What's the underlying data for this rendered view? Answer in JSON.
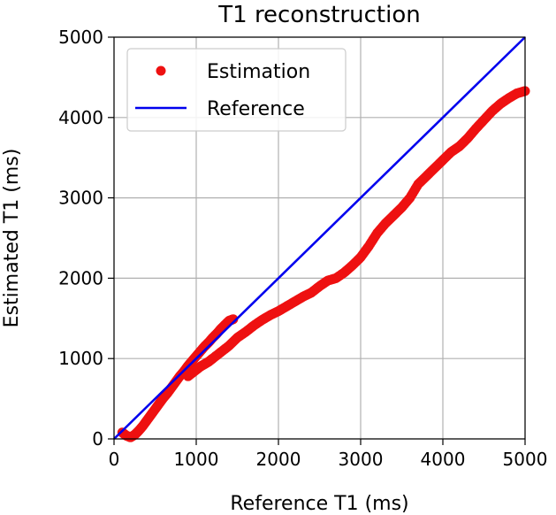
{
  "chart_data": {
    "type": "scatter",
    "title": "T1 reconstruction",
    "xlabel": "Reference T1 (ms)",
    "ylabel": "Estimated T1 (ms)",
    "xlim": [
      0,
      5000
    ],
    "ylim": [
      0,
      5000
    ],
    "xticks": [
      "0",
      "1000",
      "2000",
      "3000",
      "4000",
      "5000"
    ],
    "yticks": [
      "0",
      "1000",
      "2000",
      "3000",
      "4000",
      "5000"
    ],
    "grid": true,
    "legend_position": "top-left",
    "series": [
      {
        "name": "Estimation",
        "kind": "points",
        "color": "#ee1111",
        "segments": [
          {
            "x": [
              100,
              150,
              200,
              250,
              300,
              350,
              400,
              450,
              500,
              550,
              600,
              650,
              700,
              750,
              800,
              850,
              900,
              950,
              1000,
              1050,
              1100,
              1150,
              1200,
              1250,
              1300,
              1350,
              1400,
              1450
            ],
            "y": [
              80,
              40,
              20,
              50,
              100,
              160,
              230,
              300,
              370,
              440,
              510,
              570,
              640,
              710,
              780,
              840,
              910,
              970,
              1030,
              1090,
              1150,
              1200,
              1260,
              1310,
              1370,
              1420,
              1470,
              1490
            ]
          },
          {
            "x": [
              900,
              950,
              1000,
              1050,
              1100,
              1150,
              1200,
              1300,
              1400,
              1500,
              1600,
              1700,
              1800,
              1900,
              2000,
              2100,
              2200,
              2300,
              2400,
              2500,
              2600,
              2700,
              2800,
              2900,
              3000,
              3100,
              3200,
              3300,
              3400,
              3500,
              3600,
              3700,
              3800,
              3900,
              4000,
              4100,
              4200,
              4300,
              4400,
              4500,
              4600,
              4700,
              4800,
              4900,
              5000
            ],
            "y": [
              780,
              820,
              860,
              900,
              930,
              960,
              1000,
              1080,
              1160,
              1260,
              1330,
              1410,
              1480,
              1540,
              1590,
              1650,
              1710,
              1770,
              1820,
              1900,
              1970,
              2000,
              2070,
              2160,
              2260,
              2400,
              2560,
              2680,
              2780,
              2880,
              3000,
              3170,
              3270,
              3370,
              3470,
              3570,
              3640,
              3740,
              3860,
              3970,
              4080,
              4170,
              4240,
              4300,
              4330
            ]
          }
        ]
      },
      {
        "name": "Reference",
        "kind": "line",
        "color": "#0000ee",
        "x": [
          0,
          5000
        ],
        "y": [
          0,
          5000
        ]
      }
    ]
  }
}
